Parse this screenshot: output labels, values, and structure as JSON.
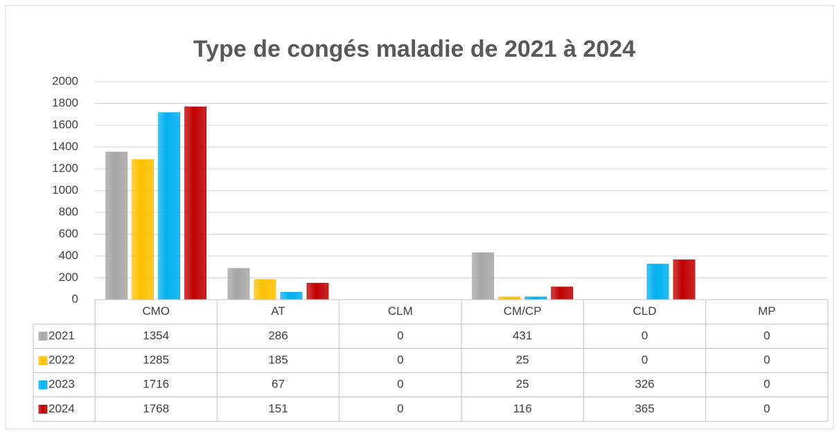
{
  "chart_data": {
    "type": "bar",
    "title": "Type de congés maladie de 2021 à 2024",
    "categories": [
      "CMO",
      "AT",
      "CLM",
      "CM/CP",
      "CLD",
      "MP"
    ],
    "series": [
      {
        "name": "2021",
        "color": "#a6a6a6",
        "values": [
          1354,
          286,
          0,
          431,
          0,
          0
        ]
      },
      {
        "name": "2022",
        "color": "#ffc000",
        "values": [
          1285,
          185,
          0,
          25,
          0,
          0
        ]
      },
      {
        "name": "2023",
        "color": "#00b0f0",
        "values": [
          1716,
          67,
          0,
          25,
          326,
          0
        ]
      },
      {
        "name": "2024",
        "color": "#c00000",
        "values": [
          1768,
          151,
          0,
          116,
          365,
          0
        ]
      }
    ],
    "ylim": [
      0,
      2000
    ],
    "yticks": [
      0,
      200,
      400,
      600,
      800,
      1000,
      1200,
      1400,
      1600,
      1800,
      2000
    ],
    "grid": true
  }
}
